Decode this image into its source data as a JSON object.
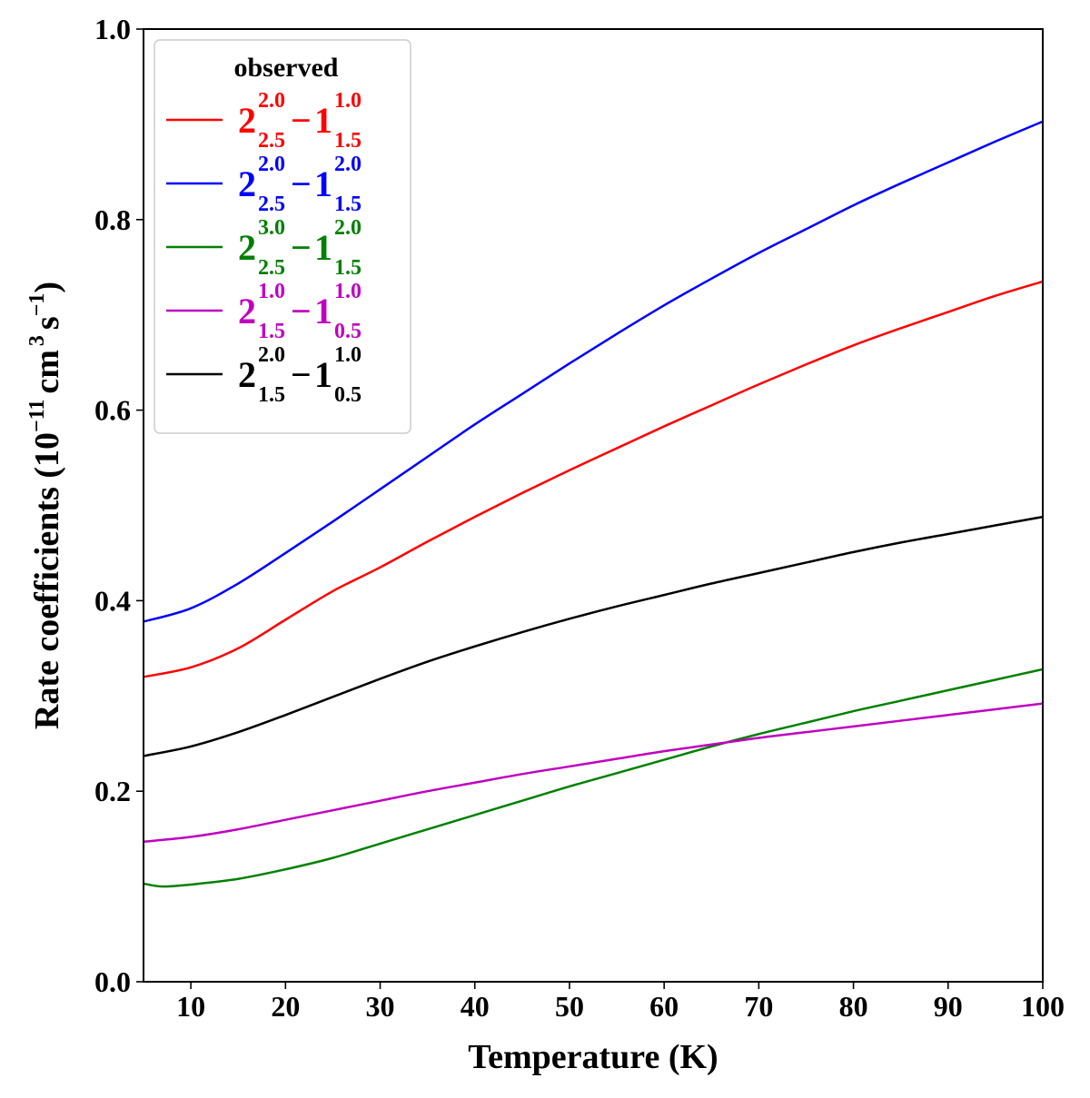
{
  "chart_data": {
    "type": "line",
    "title": "",
    "xlabel": "Temperature (K)",
    "ylabel_main": "Rate coefficients (10",
    "ylabel_exp1": "−11",
    "ylabel_unit": "cm",
    "ylabel_exp2": "3",
    "ylabel_unit2": "s",
    "ylabel_exp3": "−1",
    "ylabel_close": ")",
    "xlim": [
      5,
      100
    ],
    "ylim": [
      0.0,
      1.0
    ],
    "xticks": [
      10,
      20,
      30,
      40,
      50,
      60,
      70,
      80,
      90,
      100
    ],
    "xtick_labels": [
      "10",
      "20",
      "30",
      "40",
      "50",
      "60",
      "70",
      "80",
      "90",
      "100"
    ],
    "yticks": [
      0.0,
      0.2,
      0.4,
      0.6,
      0.8,
      1.0
    ],
    "ytick_labels": [
      "0.0",
      "0.2",
      "0.4",
      "0.6",
      "0.8",
      "1.0"
    ],
    "legend": {
      "title": "observed",
      "placement": "top-left"
    },
    "series": [
      {
        "name": "2(2.0,2.5) - 1(1.0,1.5)",
        "color": "#ff0000",
        "label_parts": {
          "big1": "2",
          "sup1": "2.0",
          "sub1": "2.5",
          "minus": "−",
          "big2": "1",
          "sup2": "1.0",
          "sub2": "1.5"
        },
        "x": [
          5,
          10,
          15,
          20,
          25,
          30,
          35,
          40,
          45,
          50,
          55,
          60,
          65,
          70,
          75,
          80,
          85,
          90,
          95,
          100
        ],
        "values": [
          0.32,
          0.33,
          0.35,
          0.38,
          0.41,
          0.435,
          0.462,
          0.488,
          0.513,
          0.537,
          0.56,
          0.583,
          0.605,
          0.627,
          0.648,
          0.668,
          0.686,
          0.703,
          0.72,
          0.735
        ]
      },
      {
        "name": "2(2.0,2.5) - 1(2.0,1.5)",
        "color": "#0000ff",
        "label_parts": {
          "big1": "2",
          "sup1": "2.0",
          "sub1": "2.5",
          "minus": "−",
          "big2": "1",
          "sup2": "2.0",
          "sub2": "1.5"
        },
        "x": [
          5,
          10,
          15,
          20,
          25,
          30,
          35,
          40,
          45,
          50,
          55,
          60,
          65,
          70,
          75,
          80,
          85,
          90,
          95,
          100
        ],
        "values": [
          0.378,
          0.392,
          0.418,
          0.45,
          0.483,
          0.517,
          0.551,
          0.585,
          0.617,
          0.649,
          0.68,
          0.71,
          0.738,
          0.765,
          0.79,
          0.815,
          0.838,
          0.86,
          0.882,
          0.903
        ]
      },
      {
        "name": "2(3.0,2.5) - 1(2.0,1.5)",
        "color": "#008000",
        "label_parts": {
          "big1": "2",
          "sup1": "3.0",
          "sub1": "2.5",
          "minus": "−",
          "big2": "1",
          "sup2": "2.0",
          "sub2": "1.5"
        },
        "x": [
          5,
          7,
          10,
          15,
          20,
          25,
          30,
          35,
          40,
          45,
          50,
          55,
          60,
          65,
          70,
          75,
          80,
          85,
          90,
          95,
          100
        ],
        "values": [
          0.103,
          0.1,
          0.102,
          0.108,
          0.118,
          0.13,
          0.145,
          0.16,
          0.175,
          0.19,
          0.205,
          0.219,
          0.233,
          0.247,
          0.26,
          0.272,
          0.284,
          0.295,
          0.306,
          0.317,
          0.328
        ]
      },
      {
        "name": "2(1.0,1.5) - 1(1.0,0.5)",
        "color": "#c000c0",
        "label_parts": {
          "big1": "2",
          "sup1": "1.0",
          "sub1": "1.5",
          "minus": "−",
          "big2": "1",
          "sup2": "1.0",
          "sub2": "0.5"
        },
        "x": [
          5,
          10,
          15,
          20,
          25,
          30,
          35,
          40,
          45,
          50,
          55,
          60,
          65,
          70,
          75,
          80,
          85,
          90,
          95,
          100
        ],
        "values": [
          0.147,
          0.152,
          0.16,
          0.17,
          0.18,
          0.19,
          0.2,
          0.209,
          0.218,
          0.226,
          0.234,
          0.242,
          0.249,
          0.256,
          0.262,
          0.268,
          0.274,
          0.28,
          0.286,
          0.292
        ]
      },
      {
        "name": "2(2.0,1.5) - 1(1.0,0.5)",
        "color": "#000000",
        "label_parts": {
          "big1": "2",
          "sup1": "2.0",
          "sub1": "1.5",
          "minus": "−",
          "big2": "1",
          "sup2": "1.0",
          "sub2": "0.5"
        },
        "x": [
          5,
          10,
          15,
          20,
          25,
          30,
          35,
          40,
          45,
          50,
          55,
          60,
          65,
          70,
          75,
          80,
          85,
          90,
          95,
          100
        ],
        "values": [
          0.237,
          0.247,
          0.262,
          0.28,
          0.299,
          0.318,
          0.336,
          0.352,
          0.367,
          0.381,
          0.394,
          0.406,
          0.418,
          0.429,
          0.44,
          0.451,
          0.461,
          0.47,
          0.479,
          0.488
        ]
      }
    ]
  }
}
